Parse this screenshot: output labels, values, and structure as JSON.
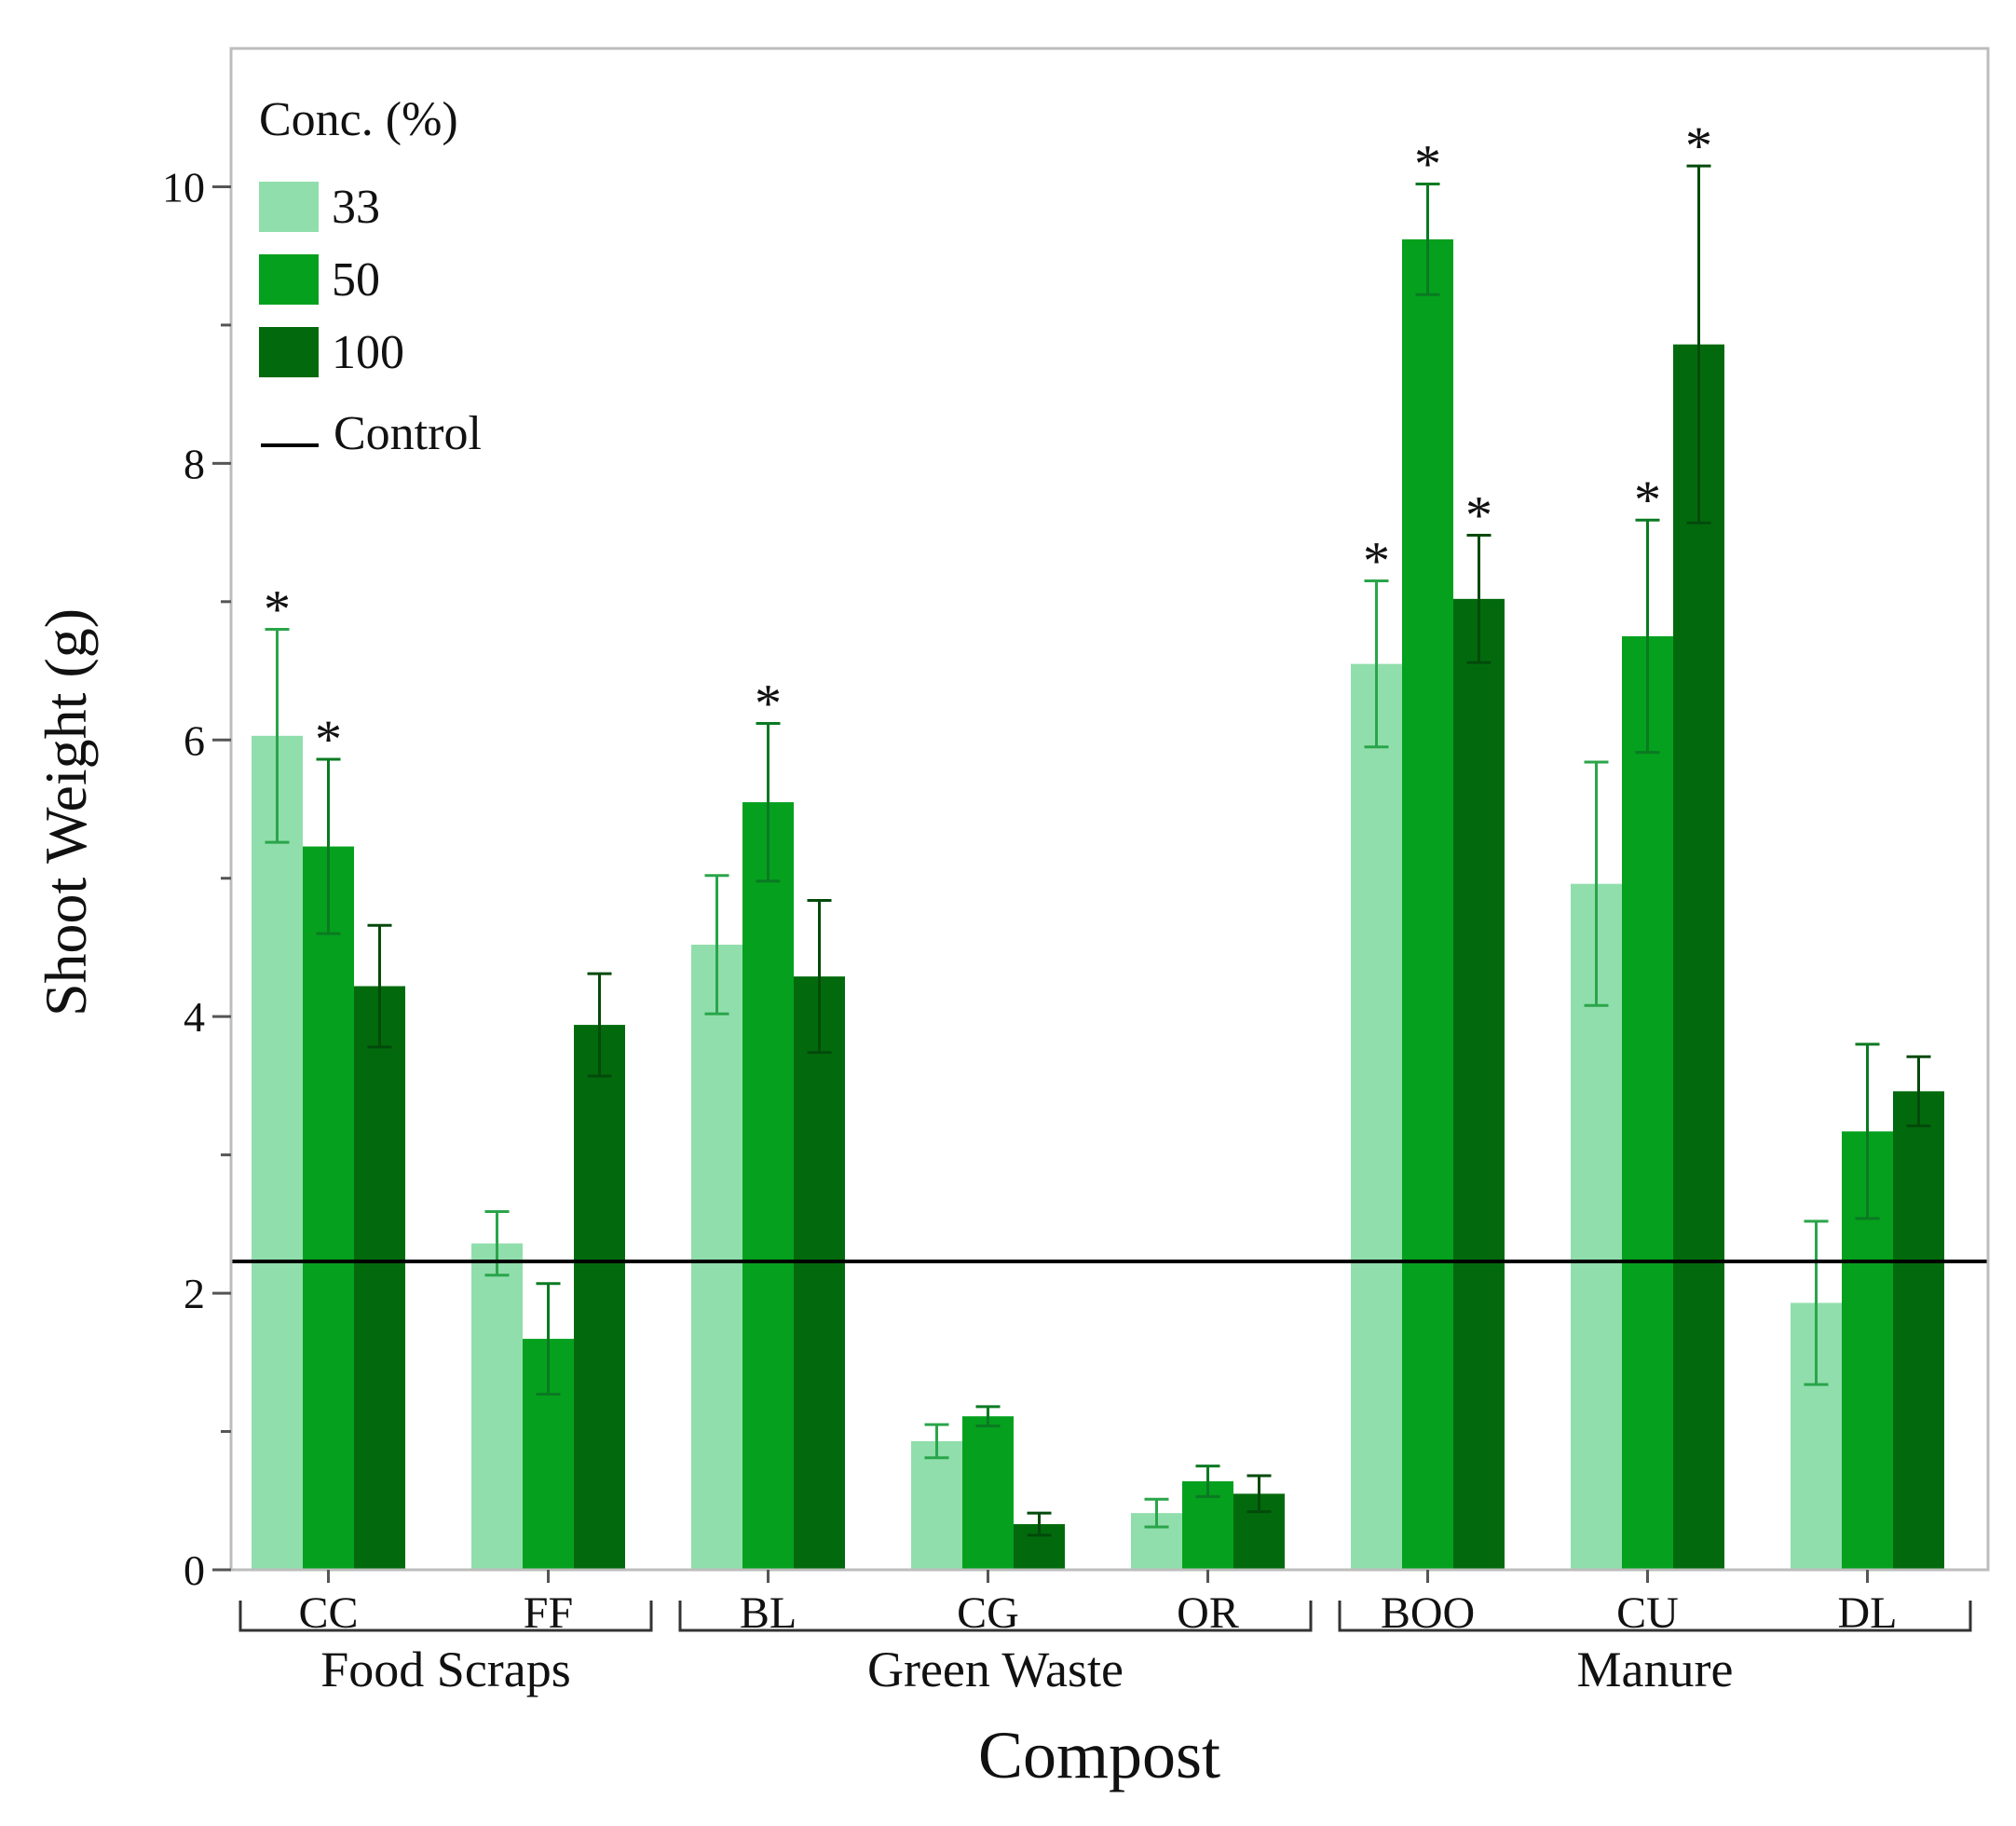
{
  "chart_data": {
    "type": "bar",
    "title": "",
    "xlabel": "Compost",
    "ylabel": "Shoot Weight (g)",
    "ylim": [
      0,
      11
    ],
    "yticks": [
      0,
      2,
      4,
      6,
      8,
      10
    ],
    "ytick_labels": [
      "0",
      "2",
      "4",
      "6",
      "8",
      "10"
    ],
    "categories": [
      "CC",
      "FF",
      "BL",
      "CG",
      "OR",
      "BOO",
      "CU",
      "DL"
    ],
    "groups": [
      {
        "label": "Food Scraps",
        "categories": [
          "CC",
          "FF"
        ]
      },
      {
        "label": "Green Waste",
        "categories": [
          "BL",
          "CG",
          "OR"
        ]
      },
      {
        "label": "Manure",
        "categories": [
          "BOO",
          "CU",
          "DL"
        ]
      }
    ],
    "legend_title": "Conc. (%)",
    "legend_position": "top-left",
    "series": [
      {
        "name": "33",
        "color": "#90deac",
        "values": [
          6.03,
          2.36,
          4.52,
          0.93,
          0.41,
          6.55,
          4.96,
          1.93
        ],
        "errors": [
          0.77,
          0.23,
          0.5,
          0.12,
          0.1,
          0.6,
          0.88,
          0.59
        ],
        "significant": [
          true,
          false,
          false,
          false,
          false,
          true,
          false,
          false
        ]
      },
      {
        "name": "50",
        "color": "#05a01e",
        "values": [
          5.23,
          1.67,
          5.55,
          1.11,
          0.64,
          9.62,
          6.75,
          3.17
        ],
        "errors": [
          0.63,
          0.4,
          0.57,
          0.07,
          0.11,
          0.4,
          0.84,
          0.63
        ],
        "significant": [
          true,
          false,
          true,
          false,
          false,
          true,
          true,
          false
        ]
      },
      {
        "name": "100",
        "color": "#026a0c",
        "values": [
          4.22,
          3.94,
          4.29,
          0.33,
          0.55,
          7.02,
          8.86,
          3.46
        ],
        "errors": [
          0.44,
          0.37,
          0.55,
          0.08,
          0.13,
          0.46,
          1.29,
          0.25
        ],
        "significant": [
          false,
          false,
          false,
          false,
          false,
          true,
          true,
          false
        ]
      }
    ],
    "reference_line": {
      "label": "Control",
      "value": 2.23,
      "color": "#000000"
    },
    "significance_marker": "*"
  }
}
